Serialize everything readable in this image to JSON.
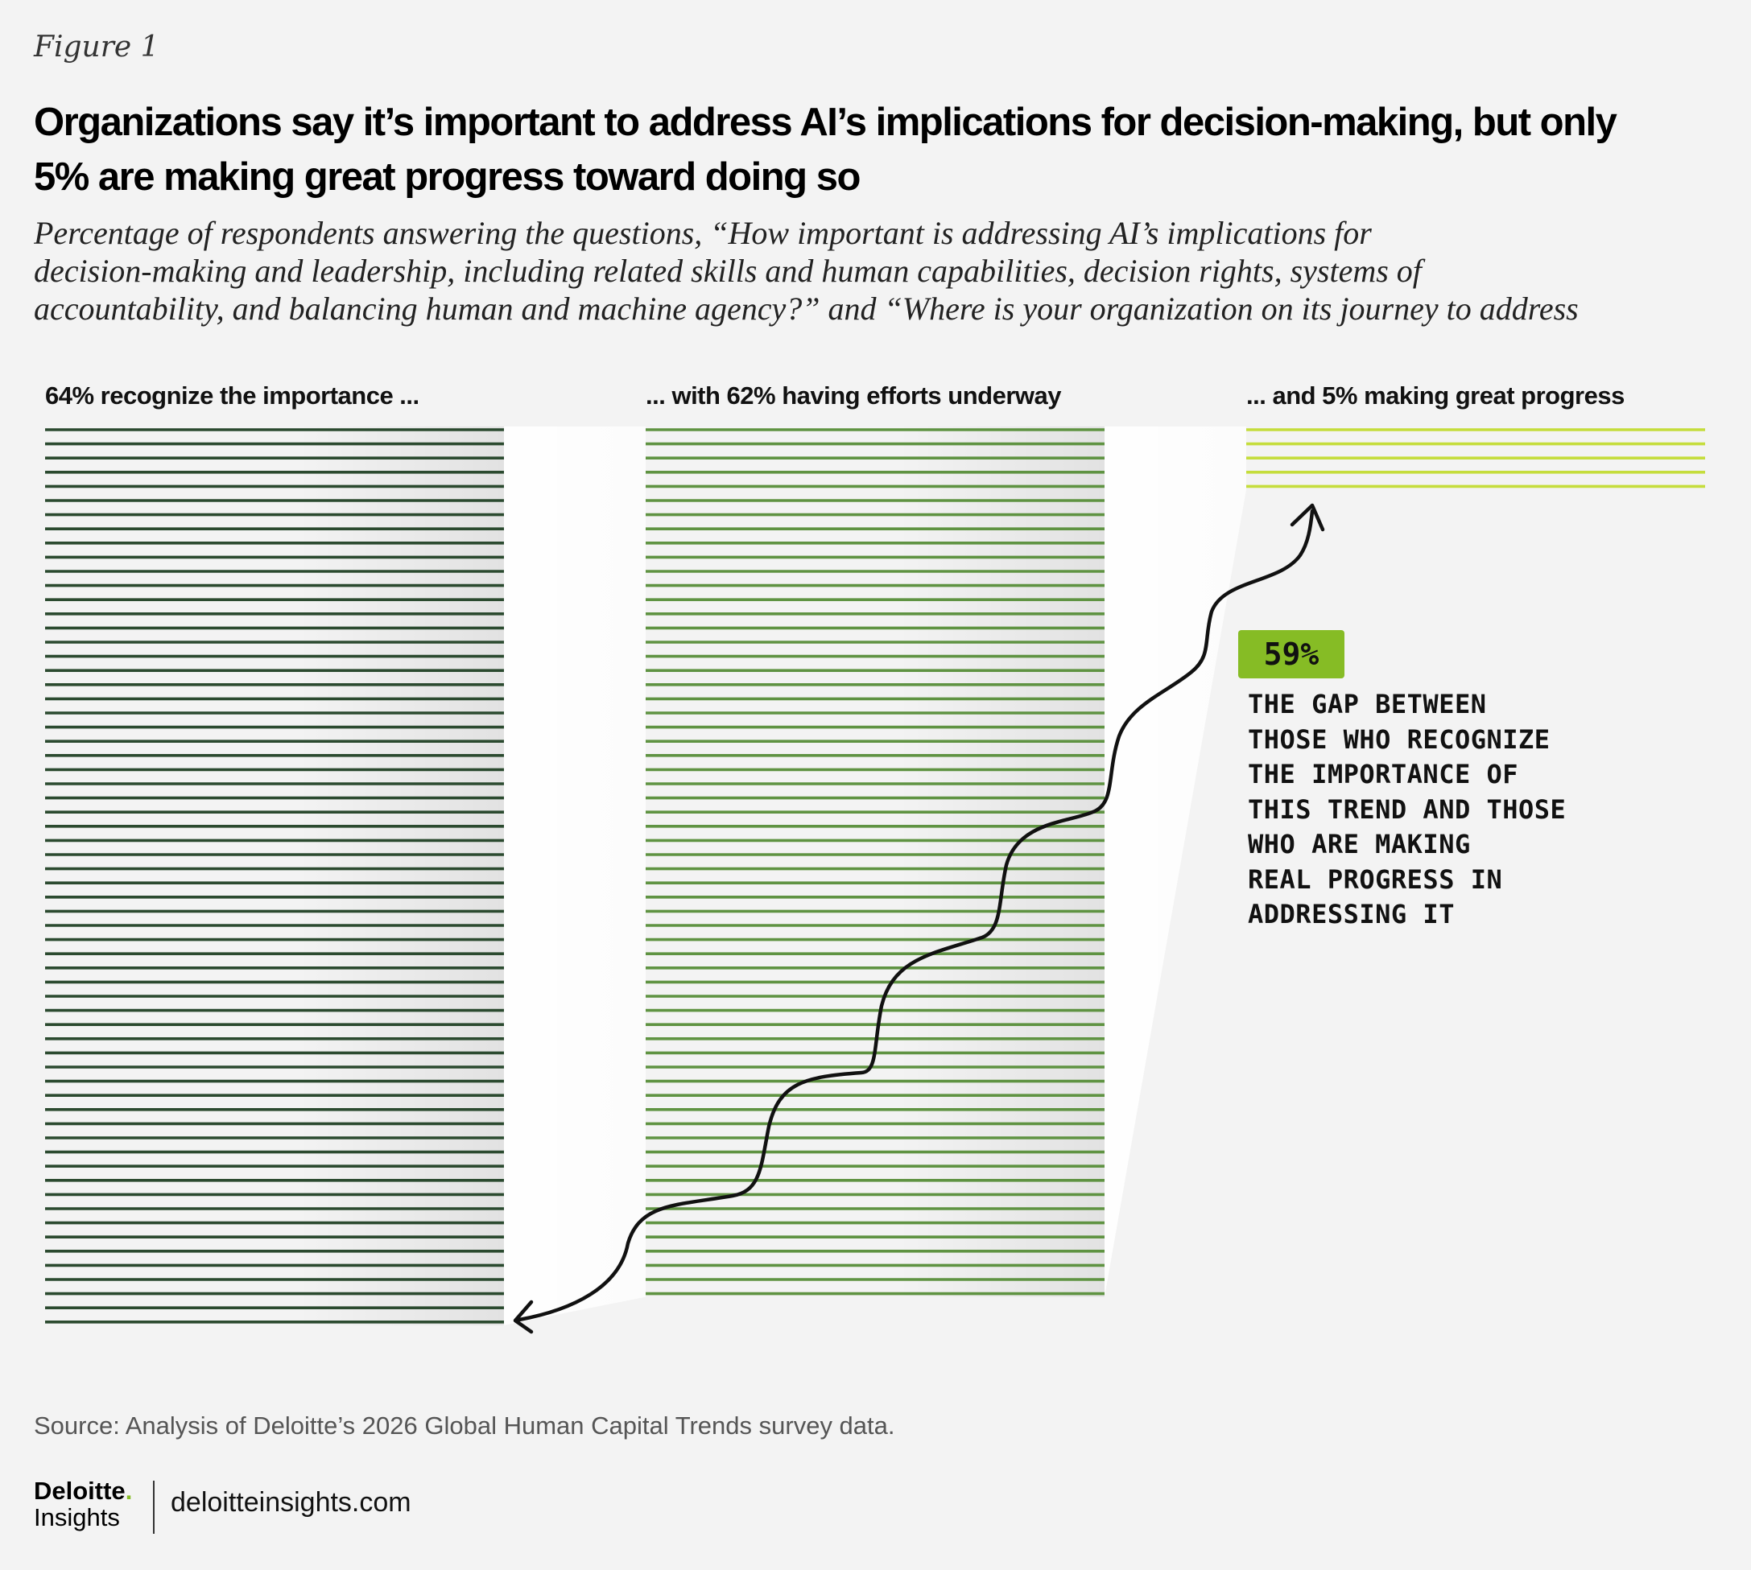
{
  "figure_label": "Figure 1",
  "title_lines": [
    "Organizations say it’s important to address AI’s implications for decision-making, but only",
    "5% are making great progress toward doing so"
  ],
  "subtitle_lines": [
    "Percentage of respondents answering the questions, “How important is addressing AI’s implications for",
    "decision-making and leadership, including related skills and human capabilities, decision rights, systems of",
    "accountability, and balancing human and machine agency?” and “Where is your organization on its journey to address"
  ],
  "chart_data": {
    "type": "bar",
    "categories": [
      "64% recognize the importance ...",
      "... with 62% having efforts underway",
      "... and 5% making great progress"
    ],
    "values": [
      64,
      62,
      5
    ],
    "unit": "%",
    "colors": [
      "#2b4a2f",
      "#5f9342",
      "#c5dd3c"
    ],
    "annotation": {
      "value": "59%",
      "lines": [
        "The gap between",
        "those who recognize",
        "the importance of",
        "this trend and those",
        "who are making",
        "real progress in",
        "addressing it"
      ],
      "badge_color": "#86bc25"
    }
  },
  "source": "Source: Analysis of Deloitte’s 2026 Global Human Capital Trends survey data.",
  "logo": {
    "brand": "Deloitte",
    "dot": ".",
    "sub": "Insights"
  },
  "site": "deloitteinsights.com"
}
